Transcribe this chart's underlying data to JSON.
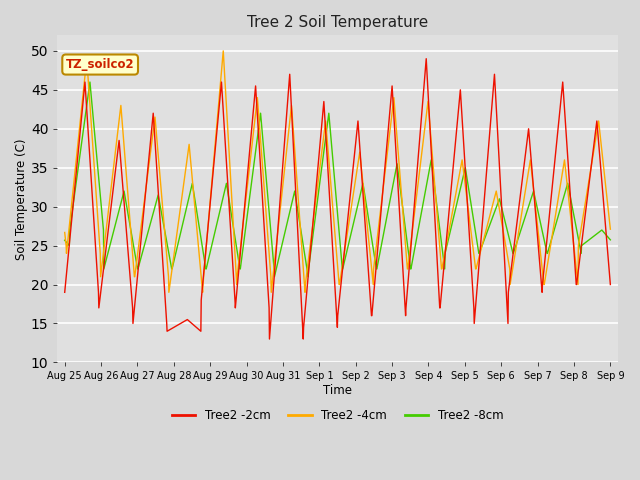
{
  "title": "Tree 2 Soil Temperature",
  "xlabel": "Time",
  "ylabel": "Soil Temperature (C)",
  "ylim": [
    10,
    52
  ],
  "annotation": "TZ_soilco2",
  "bg_color": "#e0e0e0",
  "grid_color": "#ffffff",
  "line_color_red": "#ee1100",
  "line_color_orange": "#ffaa00",
  "line_color_green": "#44cc00",
  "legend_labels": [
    "Tree2 -2cm",
    "Tree2 -4cm",
    "Tree2 -8cm"
  ],
  "tick_labels": [
    "Aug 25",
    "Aug 26",
    "Aug 27",
    "Aug 28",
    "Aug 29",
    "Aug 30",
    "Aug 31",
    "Sep 1",
    "Sep 2",
    "Sep 3",
    "Sep 4",
    "Sep 5",
    "Sep 6",
    "Sep 7",
    "Sep 8",
    "Sep 9"
  ],
  "tick_positions": [
    0,
    1,
    2,
    3,
    4,
    5,
    6,
    7,
    8,
    9,
    10,
    11,
    12,
    13,
    14,
    15
  ],
  "yticks": [
    10,
    15,
    20,
    25,
    30,
    35,
    40,
    45,
    50
  ],
  "figsize": [
    6.4,
    4.8
  ],
  "dpi": 100
}
